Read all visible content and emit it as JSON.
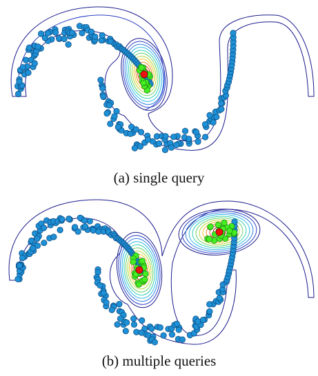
{
  "panels": [
    {
      "id": "a",
      "caption": "(a) single query",
      "query_count": 1
    },
    {
      "id": "b",
      "caption": "(b) multiple queries",
      "query_count": 2
    }
  ],
  "colors": {
    "point_fill": "#1e90d6",
    "point_stroke": "#0d4f86",
    "neighbor_fill": "#44ee22",
    "neighbor_stroke": "#1c8a10",
    "query_fill": "#ee1111",
    "contour_outer": "#1a1a8c",
    "contour_inner": "#cc1111"
  }
}
